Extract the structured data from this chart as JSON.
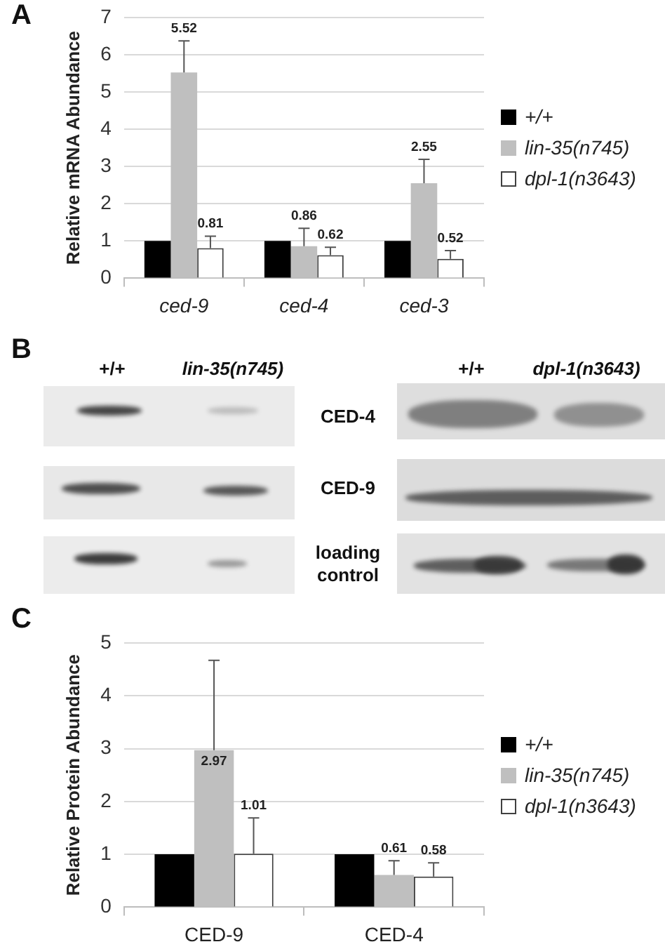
{
  "chart_data": [
    {
      "type": "bar",
      "title": "A",
      "ylabel": "Relative mRNA Abundance",
      "categories": [
        "ced-9",
        "ced-4",
        "ced-3"
      ],
      "series": [
        {
          "name": "+/+",
          "color": "#000000",
          "values": [
            1,
            1,
            1
          ]
        },
        {
          "name": "lin-35(n745)",
          "color": "#bfbfbf",
          "values": [
            5.52,
            0.86,
            2.55
          ],
          "errors": [
            [
              5.52,
              6.37
            ],
            [
              0.86,
              1.34
            ],
            [
              2.55,
              3.19
            ]
          ],
          "value_labels": [
            "5.52",
            "0.86",
            "2.55"
          ]
        },
        {
          "name": "dpl-1(n3643)",
          "color": "#ffffff",
          "values": [
            0.81,
            0.62,
            0.52
          ],
          "errors": [
            [
              0.81,
              1.13
            ],
            [
              0.62,
              0.83
            ],
            [
              0.52,
              0.74
            ]
          ],
          "value_labels": [
            "0.81",
            "0.62",
            "0.52"
          ]
        }
      ],
      "ylim": [
        0,
        7
      ],
      "yticks": [
        0,
        1,
        2,
        3,
        4,
        5,
        6,
        7
      ],
      "grid": "y",
      "legend": "right"
    },
    {
      "type": "other",
      "title": "B",
      "annotations": [
        "+/+",
        "lin-35(n745)",
        "+/+",
        "dpl-1(n3643)",
        "CED-4",
        "CED-9",
        "loading control"
      ]
    },
    {
      "type": "bar",
      "title": "C",
      "ylabel": "Relative Protein Abundance",
      "categories": [
        "CED-9",
        "CED-4"
      ],
      "series": [
        {
          "name": "+/+",
          "color": "#000000",
          "values": [
            1,
            1
          ]
        },
        {
          "name": "lin-35(n745)",
          "color": "#bfbfbf",
          "values": [
            2.97,
            0.61
          ],
          "errors": [
            [
              2.97,
              4.67
            ],
            [
              0.61,
              0.88
            ]
          ],
          "value_labels": [
            "2.97",
            "0.61"
          ]
        },
        {
          "name": "dpl-1(n3643)",
          "color": "#ffffff",
          "values": [
            1.01,
            0.58
          ],
          "errors": [
            [
              1.01,
              1.69
            ],
            [
              0.58,
              0.84
            ]
          ],
          "value_labels": [
            "1.01",
            "0.58"
          ]
        }
      ],
      "ylim": [
        0,
        5
      ],
      "yticks": [
        0,
        1,
        2,
        3,
        4,
        5
      ],
      "grid": "y",
      "legend": "right"
    }
  ]
}
